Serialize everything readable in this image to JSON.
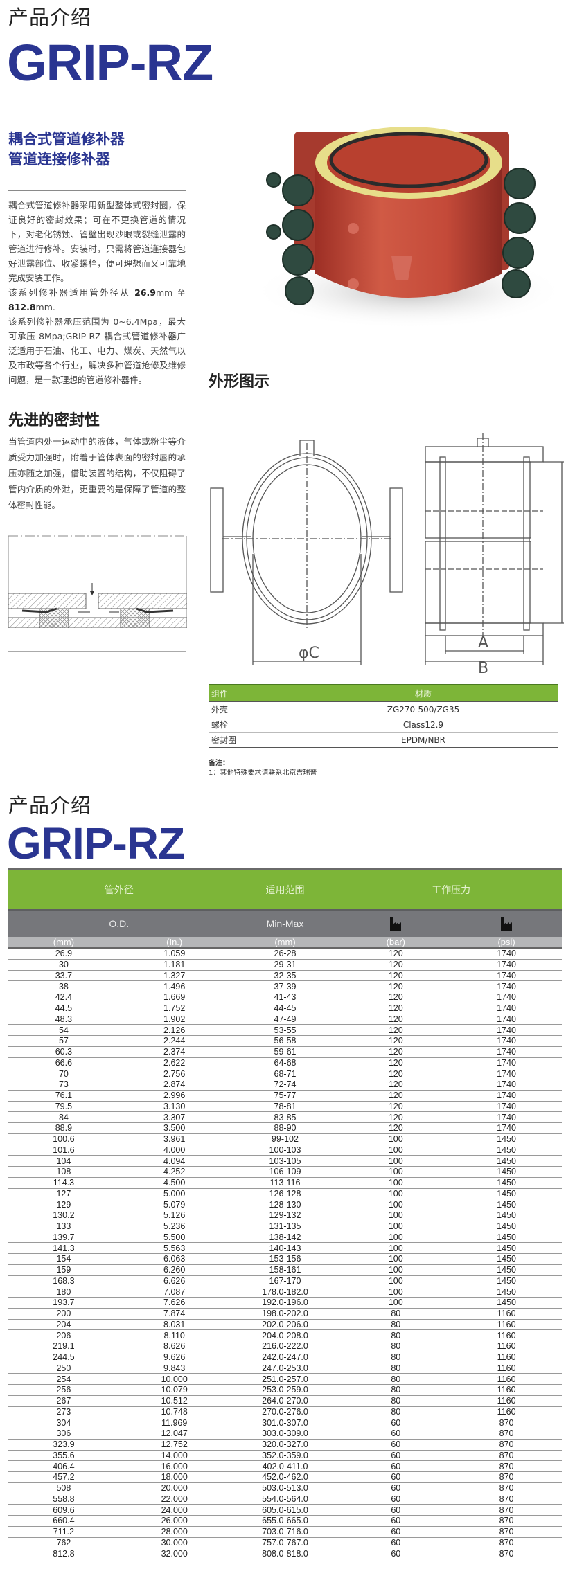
{
  "header": {
    "kicker": "产品介绍",
    "brand": "GRIP-RZ"
  },
  "intro": {
    "subtitle1": "耦合式管道修补器",
    "subtitle2": "管道连接修补器",
    "p1": "耦合式管道修补器采用新型整体式密封圈，保证良好的密封效果；可在不更换管道的情况下，对老化锈蚀、管壁出现沙眼或裂缝泄露的管道进行修补。安装时，只需将管道连接器包好泄露部位、收紧螺栓，便可理想而又可靠地完成安装工作。",
    "p2a": "该系列修补器适用管外径从",
    "p2b": "26.9",
    "p2c": "mm 至 ",
    "p2d": "812.8",
    "p2e": "mm.",
    "p3": "该系列修补器承压范围为 0~6.4Mpa，最大可承压 8Mpa;GRIP-RZ 耦合式管道修补器广泛适用于石油、化工、电力、煤炭、天然气以及市政等各个行业，解决多种管道抢修及维修问题，是一款理想的管道修补器件。"
  },
  "seal": {
    "title": "先进的密封性",
    "text": "当管道内处于运动中的液体，气体或粉尘等介质受力加强时，附着于管体表面的密封唇的承压亦随之加强，借助装置的结构，不仅阻碍了管内介质的外泄，更重要的是保障了管道的整体密封性能。"
  },
  "drawing": {
    "title": "外形图示",
    "label_c": "φC",
    "label_a": "A",
    "label_b": "B"
  },
  "materials": {
    "headers": [
      "组件",
      "材质"
    ],
    "rows": [
      [
        "外壳",
        "ZG270-500/ZG35"
      ],
      [
        "螺栓",
        "Class12.9"
      ],
      [
        "密封圈",
        "EPDM/NBR"
      ]
    ]
  },
  "note": {
    "title": "备注：",
    "line1": "1：其他特殊要求请联系北京吉瑞普"
  },
  "header2": {
    "kicker": "产品介绍",
    "brand": "GRIP-RZ"
  },
  "table": {
    "group_headers": [
      "管外径",
      "适用范围",
      "工作压力"
    ],
    "sub_headers": [
      "O.D.",
      "Min-Max"
    ],
    "pressure_icon": "factory-icon",
    "units": [
      "(mm)",
      "(In.)",
      "(mm)",
      "(bar)",
      "(psi)"
    ],
    "rows": [
      [
        "26.9",
        "1.059",
        "26-28",
        "120",
        "1740"
      ],
      [
        "30",
        "1.181",
        "29-31",
        "120",
        "1740"
      ],
      [
        "33.7",
        "1.327",
        "32-35",
        "120",
        "1740"
      ],
      [
        "38",
        "1.496",
        "37-39",
        "120",
        "1740"
      ],
      [
        "42.4",
        "1.669",
        "41-43",
        "120",
        "1740"
      ],
      [
        "44.5",
        "1.752",
        "44-45",
        "120",
        "1740"
      ],
      [
        "48.3",
        "1.902",
        "47-49",
        "120",
        "1740"
      ],
      [
        "54",
        "2.126",
        "53-55",
        "120",
        "1740"
      ],
      [
        "57",
        "2.244",
        "56-58",
        "120",
        "1740"
      ],
      [
        "60.3",
        "2.374",
        "59-61",
        "120",
        "1740"
      ],
      [
        "66.6",
        "2.622",
        "64-68",
        "120",
        "1740"
      ],
      [
        "70",
        "2.756",
        "68-71",
        "120",
        "1740"
      ],
      [
        "73",
        "2.874",
        "72-74",
        "120",
        "1740"
      ],
      [
        "76.1",
        "2.996",
        "75-77",
        "120",
        "1740"
      ],
      [
        "79.5",
        "3.130",
        "78-81",
        "120",
        "1740"
      ],
      [
        "84",
        "3.307",
        "83-85",
        "120",
        "1740"
      ],
      [
        "88.9",
        "3.500",
        "88-90",
        "120",
        "1740"
      ],
      [
        "100.6",
        "3.961",
        "99-102",
        "100",
        "1450"
      ],
      [
        "101.6",
        "4.000",
        "100-103",
        "100",
        "1450"
      ],
      [
        "104",
        "4.094",
        "103-105",
        "100",
        "1450"
      ],
      [
        "108",
        "4.252",
        "106-109",
        "100",
        "1450"
      ],
      [
        "114.3",
        "4.500",
        "113-116",
        "100",
        "1450"
      ],
      [
        "127",
        "5.000",
        "126-128",
        "100",
        "1450"
      ],
      [
        "129",
        "5.079",
        "128-130",
        "100",
        "1450"
      ],
      [
        "130.2",
        "5.126",
        "129-132",
        "100",
        "1450"
      ],
      [
        "133",
        "5.236",
        "131-135",
        "100",
        "1450"
      ],
      [
        "139.7",
        "5.500",
        "138-142",
        "100",
        "1450"
      ],
      [
        "141.3",
        "5.563",
        "140-143",
        "100",
        "1450"
      ],
      [
        "154",
        "6.063",
        "153-156",
        "100",
        "1450"
      ],
      [
        "159",
        "6.260",
        "158-161",
        "100",
        "1450"
      ],
      [
        "168.3",
        "6.626",
        "167-170",
        "100",
        "1450"
      ],
      [
        "180",
        "7.087",
        "178.0-182.0",
        "100",
        "1450"
      ],
      [
        "193.7",
        "7.626",
        "192.0-196.0",
        "100",
        "1450"
      ],
      [
        "200",
        "7.874",
        "198.0-202.0",
        "80",
        "1160"
      ],
      [
        "204",
        "8.031",
        "202.0-206.0",
        "80",
        "1160"
      ],
      [
        "206",
        "8.110",
        "204.0-208.0",
        "80",
        "1160"
      ],
      [
        "219.1",
        "8.626",
        "216.0-222.0",
        "80",
        "1160"
      ],
      [
        "244.5",
        "9.626",
        "242.0-247.0",
        "80",
        "1160"
      ],
      [
        "250",
        "9.843",
        "247.0-253.0",
        "80",
        "1160"
      ],
      [
        "254",
        "10.000",
        "251.0-257.0",
        "80",
        "1160"
      ],
      [
        "256",
        "10.079",
        "253.0-259.0",
        "80",
        "1160"
      ],
      [
        "267",
        "10.512",
        "264.0-270.0",
        "80",
        "1160"
      ],
      [
        "273",
        "10.748",
        "270.0-276.0",
        "80",
        "1160"
      ],
      [
        "304",
        "11.969",
        "301.0-307.0",
        "60",
        "870"
      ],
      [
        "306",
        "12.047",
        "303.0-309.0",
        "60",
        "870"
      ],
      [
        "323.9",
        "12.752",
        "320.0-327.0",
        "60",
        "870"
      ],
      [
        "355.6",
        "14.000",
        "352.0-359.0",
        "60",
        "870"
      ],
      [
        "406.4",
        "16.000",
        "402.0-411.0",
        "60",
        "870"
      ],
      [
        "457.2",
        "18.000",
        "452.0-462.0",
        "60",
        "870"
      ],
      [
        "508",
        "20.000",
        "503.0-513.0",
        "60",
        "870"
      ],
      [
        "558.8",
        "22.000",
        "554.0-564.0",
        "60",
        "870"
      ],
      [
        "609.6",
        "24.000",
        "605.0-615.0",
        "60",
        "870"
      ],
      [
        "660.4",
        "26.000",
        "655.0-665.0",
        "60",
        "870"
      ],
      [
        "711.2",
        "28.000",
        "703.0-716.0",
        "60",
        "870"
      ],
      [
        "762",
        "30.000",
        "757.0-767.0",
        "60",
        "870"
      ],
      [
        "812.8",
        "32.000",
        "808.0-818.0",
        "60",
        "870"
      ]
    ]
  },
  "colors": {
    "brand_blue": "#2a3591",
    "green": "#7db538",
    "grey": "#76777b",
    "product_red": "#c0493a",
    "bolt_green": "#2f4a40"
  }
}
